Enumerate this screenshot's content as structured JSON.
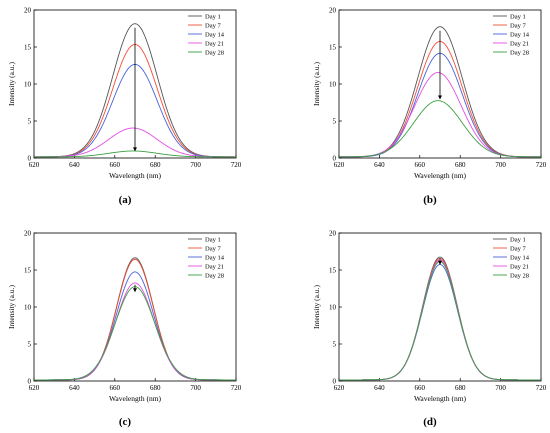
{
  "figure": {
    "captions": [
      "(a)",
      "(b)",
      "(c)",
      "(d)"
    ]
  },
  "legend_labels": [
    "Day 1",
    "Day 7",
    "Day 14",
    "Day 21",
    "Day 28"
  ],
  "series_colors": [
    "#555555",
    "#f04e37",
    "#4a63d8",
    "#e44fe4",
    "#3aa040"
  ],
  "arrow_color": "#000000",
  "chart_data": [
    {
      "type": "line",
      "panel": "(a)",
      "xlabel": "Wavelength (nm)",
      "ylabel": "Intensity (a.u.)",
      "xlim": [
        620,
        720
      ],
      "ylim": [
        0,
        20
      ],
      "xticks": [
        620,
        640,
        660,
        680,
        700,
        720
      ],
      "yticks": [
        0,
        5,
        10,
        15,
        20
      ],
      "grid": false,
      "legend_position": "top-right",
      "series": [
        {
          "name": "Day 1",
          "peak_x": 670,
          "peak_y": 18.0,
          "width": 11
        },
        {
          "name": "Day 7",
          "peak_x": 670,
          "peak_y": 15.2,
          "width": 11
        },
        {
          "name": "Day 14",
          "peak_x": 670,
          "peak_y": 12.5,
          "width": 11
        },
        {
          "name": "Day 21",
          "peak_x": 669,
          "peak_y": 3.9,
          "width": 12
        },
        {
          "name": "Day 28",
          "peak_x": 669,
          "peak_y": 0.8,
          "width": 12
        }
      ],
      "arrow": {
        "x": 670,
        "from": 17.6,
        "to": 0.9
      }
    },
    {
      "type": "line",
      "panel": "(b)",
      "xlabel": "Wavelength (nm)",
      "ylabel": "Intensity (a.u.)",
      "xlim": [
        620,
        720
      ],
      "ylim": [
        0,
        20
      ],
      "xticks": [
        620,
        640,
        660,
        680,
        700,
        720
      ],
      "yticks": [
        0,
        5,
        10,
        15,
        20
      ],
      "grid": false,
      "legend_position": "top-right",
      "series": [
        {
          "name": "Day 1",
          "peak_x": 670,
          "peak_y": 17.6,
          "width": 11
        },
        {
          "name": "Day 7",
          "peak_x": 670,
          "peak_y": 15.6,
          "width": 11
        },
        {
          "name": "Day 14",
          "peak_x": 670,
          "peak_y": 14.0,
          "width": 11
        },
        {
          "name": "Day 21",
          "peak_x": 669,
          "peak_y": 11.4,
          "width": 11.5
        },
        {
          "name": "Day 28",
          "peak_x": 669,
          "peak_y": 7.6,
          "width": 12
        }
      ],
      "arrow": {
        "x": 670,
        "from": 17.2,
        "to": 7.9
      }
    },
    {
      "type": "line",
      "panel": "(c)",
      "xlabel": "Wavelength (nm)",
      "ylabel": "Intensity (a.u.)",
      "xlim": [
        620,
        720
      ],
      "ylim": [
        0,
        20
      ],
      "xticks": [
        620,
        640,
        660,
        680,
        700,
        720
      ],
      "yticks": [
        0,
        5,
        10,
        15,
        20
      ],
      "grid": false,
      "legend_position": "top-right",
      "series": [
        {
          "name": "Day 1",
          "peak_x": 670,
          "peak_y": 16.5,
          "width": 9
        },
        {
          "name": "Day 7",
          "peak_x": 670,
          "peak_y": 16.3,
          "width": 9
        },
        {
          "name": "Day 14",
          "peak_x": 670,
          "peak_y": 14.6,
          "width": 9.2
        },
        {
          "name": "Day 21",
          "peak_x": 670,
          "peak_y": 13.1,
          "width": 9.5
        },
        {
          "name": "Day 28",
          "peak_x": 670,
          "peak_y": 12.6,
          "width": 9.8
        }
      ],
      "arrow": {
        "x": 670,
        "from": 13.0,
        "to": 12.0
      }
    },
    {
      "type": "line",
      "panel": "(d)",
      "xlabel": "Wavelength (nm)",
      "ylabel": "Intensity (a.u.)",
      "xlim": [
        620,
        720
      ],
      "ylim": [
        0,
        20
      ],
      "xticks": [
        620,
        640,
        660,
        680,
        700,
        720
      ],
      "yticks": [
        0,
        5,
        10,
        15,
        20
      ],
      "grid": false,
      "legend_position": "top-right",
      "series": [
        {
          "name": "Day 1",
          "peak_x": 670,
          "peak_y": 16.6,
          "width": 8.5
        },
        {
          "name": "Day 7",
          "peak_x": 670,
          "peak_y": 16.4,
          "width": 8.5
        },
        {
          "name": "Day 14",
          "peak_x": 670,
          "peak_y": 15.6,
          "width": 8.6
        },
        {
          "name": "Day 21",
          "peak_x": 670,
          "peak_y": 16.2,
          "width": 8.5
        },
        {
          "name": "Day 28",
          "peak_x": 670,
          "peak_y": 16.0,
          "width": 8.6
        }
      ],
      "arrow": {
        "x": 670,
        "from": 16.6,
        "to": 15.7
      }
    }
  ]
}
